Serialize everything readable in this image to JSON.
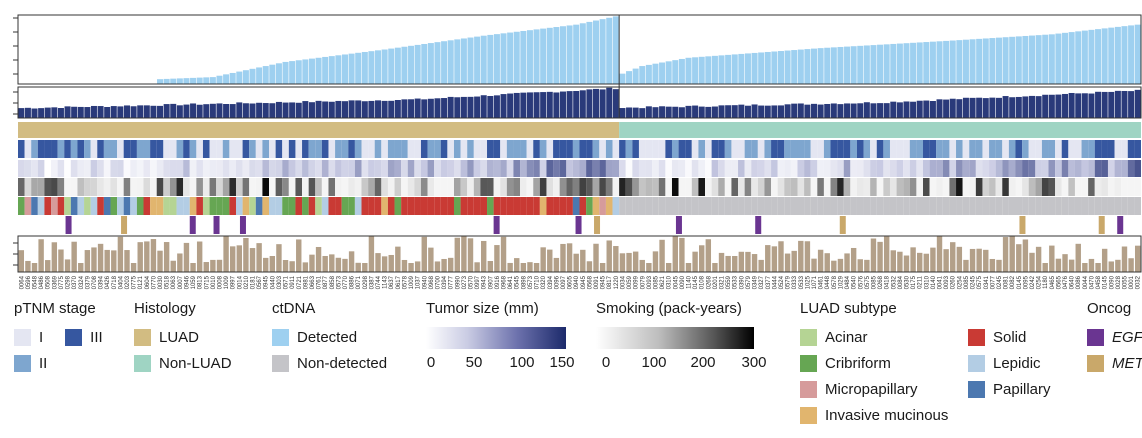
{
  "colors": {
    "ctdna_bar": "#9ed0f0",
    "size_bar": "#2a3a7a",
    "luad": "#d2bc82",
    "nonluad": "#9fd4c3",
    "stage_I": "#e4e6f2",
    "stage_II": "#7ea6cf",
    "stage_III": "#3657a0",
    "detected": "#9ed0f0",
    "nondetected": "#c4c4c8",
    "acinar": "#b5d494",
    "cribriform": "#66a653",
    "micropapillary": "#d69b9b",
    "invasive_mucinous": "#e1b56e",
    "solid": "#c93a34",
    "lepidic": "#b3cde4",
    "papillary": "#4c78b0",
    "egfr": "#6a3591",
    "met": "#c9a86a",
    "smoking_bar": "#b3a089"
  },
  "legend": {
    "stage": {
      "title": "pTNM stage",
      "I": "I",
      "II": "II",
      "III": "III"
    },
    "histology": {
      "title": "Histology",
      "luad": "LUAD",
      "nonluad": "Non-LUAD"
    },
    "ctdna": {
      "title": "ctDNA",
      "detected": "Detected",
      "nondetected": "Non-detected"
    },
    "tumor_size": {
      "title": "Tumor size (mm)",
      "t0": "0",
      "t1": "50",
      "t2": "100",
      "t3": "150"
    },
    "smoking": {
      "title": "Smoking (pack-years)",
      "t0": "0",
      "t1": "100",
      "t2": "200",
      "t3": "300"
    },
    "subtype": {
      "title": "LUAD subtype",
      "acinar": "Acinar",
      "cribriform": "Cribriform",
      "micropapillary": "Micropapillary",
      "invasive_mucinous": "Invasive mucinous",
      "solid": "Solid",
      "lepidic": "Lepidic",
      "papillary": "Papillary"
    },
    "oncogene": {
      "title": "Oncog",
      "egfr": "EGFR",
      "met": "MET"
    }
  },
  "chart_data": {
    "type": "bar",
    "n_luad": 91,
    "n_nonluad": 79,
    "luad_vaf_profile": [
      [
        0,
        0
      ],
      [
        20,
        0
      ],
      [
        21,
        0.07
      ],
      [
        29,
        0.1
      ],
      [
        40,
        0.32
      ],
      [
        55,
        0.5
      ],
      [
        70,
        0.7
      ],
      [
        84,
        0.86
      ],
      [
        90,
        0.98
      ]
    ],
    "nonluad_vaf_profile": [
      [
        0,
        0.15
      ],
      [
        3,
        0.26
      ],
      [
        10,
        0.38
      ],
      [
        30,
        0.52
      ],
      [
        50,
        0.63
      ],
      [
        65,
        0.72
      ],
      [
        78,
        0.86
      ]
    ],
    "luad_size_profile": [
      [
        0,
        0.32
      ],
      [
        30,
        0.46
      ],
      [
        60,
        0.6
      ],
      [
        90,
        0.96
      ]
    ],
    "nonluad_size_profile": [
      [
        0,
        0.33
      ],
      [
        39,
        0.5
      ],
      [
        78,
        0.88
      ]
    ],
    "series": [
      {
        "name": "ctDNA",
        "values": "per-patient bars (see generator)"
      }
    ],
    "sample_ids": [
      "0064",
      "0596",
      "0548",
      "0486",
      "0508",
      "0369",
      "0775",
      "0298",
      "0370",
      "0324",
      "0379",
      "0708",
      "0394",
      "0426",
      "0718",
      "0404",
      "0203",
      "0775",
      "0121",
      "0604",
      "0770",
      "0030",
      "0518",
      "0063",
      "0007",
      "0946",
      "1059",
      "0813",
      "0715",
      "0010",
      "0008",
      "1009",
      "0997",
      "0014",
      "0210",
      "0181",
      "0567",
      "0945",
      "0440",
      "0303",
      "0571",
      "0911",
      "0721",
      "0981",
      "0663",
      "0761",
      "0877",
      "0858",
      "0573",
      "0770",
      "0886",
      "0071",
      "0298",
      "0387",
      "0744",
      "1143",
      "0637",
      "0617",
      "0578",
      "1009",
      "1037",
      "0940",
      "0968",
      "0700",
      "0394",
      "0777",
      "0990",
      "0273",
      "0570",
      "0997",
      "0943",
      "0907",
      "0916",
      "0968",
      "0641",
      "0545",
      "0898",
      "0573",
      "0710",
      "0320",
      "0394",
      "0096",
      "0097",
      "0605",
      "0940",
      "0945",
      "0568",
      "0091",
      "0945",
      "0817",
      "1220",
      "0034",
      "0059",
      "0099",
      "0079",
      "0093",
      "0085",
      "0621",
      "0310",
      "0045",
      "0090",
      "1140",
      "0145",
      "0108",
      "0268",
      "0201",
      "0321",
      "0559",
      "0533",
      "0390",
      "0579",
      "0349",
      "0327",
      "0377",
      "0444",
      "0524",
      "0579",
      "0333",
      "0533",
      "1025",
      "1071",
      "0461",
      "0448",
      "0578",
      "1029",
      "0484",
      "0540",
      "0576",
      "0575",
      "0085",
      "0268",
      "0418",
      "0532",
      "0084",
      "0530",
      "0175",
      "0211",
      "0310",
      "0140",
      "0041",
      "0093",
      "0260",
      "0254",
      "0085",
      "0245",
      "0575",
      "0341",
      "0077",
      "0245",
      "0081",
      "0082",
      "0145",
      "0095",
      "0242",
      "0254",
      "1180",
      "0465",
      "0565",
      "0476",
      "0640",
      "0086",
      "0044",
      "0470",
      "0458",
      "0145",
      "0090",
      "0028",
      "0055",
      "0001",
      "0032"
    ]
  }
}
